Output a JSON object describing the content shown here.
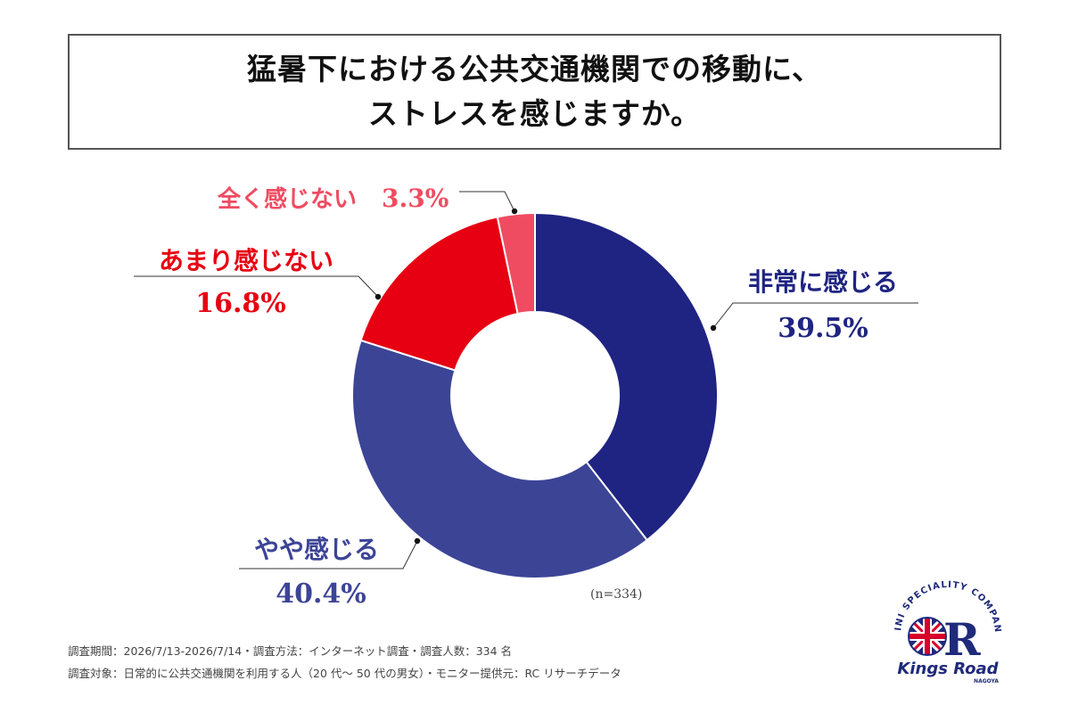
{
  "title": {
    "line1": "猛暑下における公共交通機関での移動に、",
    "line2": "ストレスを感じますか。"
  },
  "chart_data": {
    "type": "pie",
    "donut": true,
    "slices": [
      {
        "label": "非常に感じる",
        "value": 39.5,
        "value_label": "39.5%",
        "color": "#1f2482"
      },
      {
        "label": "やや感じる",
        "value": 40.4,
        "value_label": "40.4%",
        "color": "#3c4496"
      },
      {
        "label": "あまり感じない",
        "value": 16.8,
        "value_label": "16.8%",
        "color": "#e60012"
      },
      {
        "label": "全く感じない",
        "value": 3.3,
        "value_label": "3.3%",
        "color": "#ef4c62"
      }
    ],
    "sample_size": "(n=334)"
  },
  "footer": {
    "line1": "調査期間：2026/7/13-2026/7/14・調査方法：インターネット調査・調査人数：334 名",
    "line2": "調査対象：日常的に公共交通機関を利用する人（20 代〜 50 代の男女）・モニター提供元：RC リサーチデータ"
  },
  "logo": {
    "arc_text": "MINI SPECIALITY COMPANY",
    "brand": "Kings Road",
    "city": "NAGOYA",
    "colors": {
      "navy": "#1f2a7a",
      "red": "#d7002a"
    }
  }
}
